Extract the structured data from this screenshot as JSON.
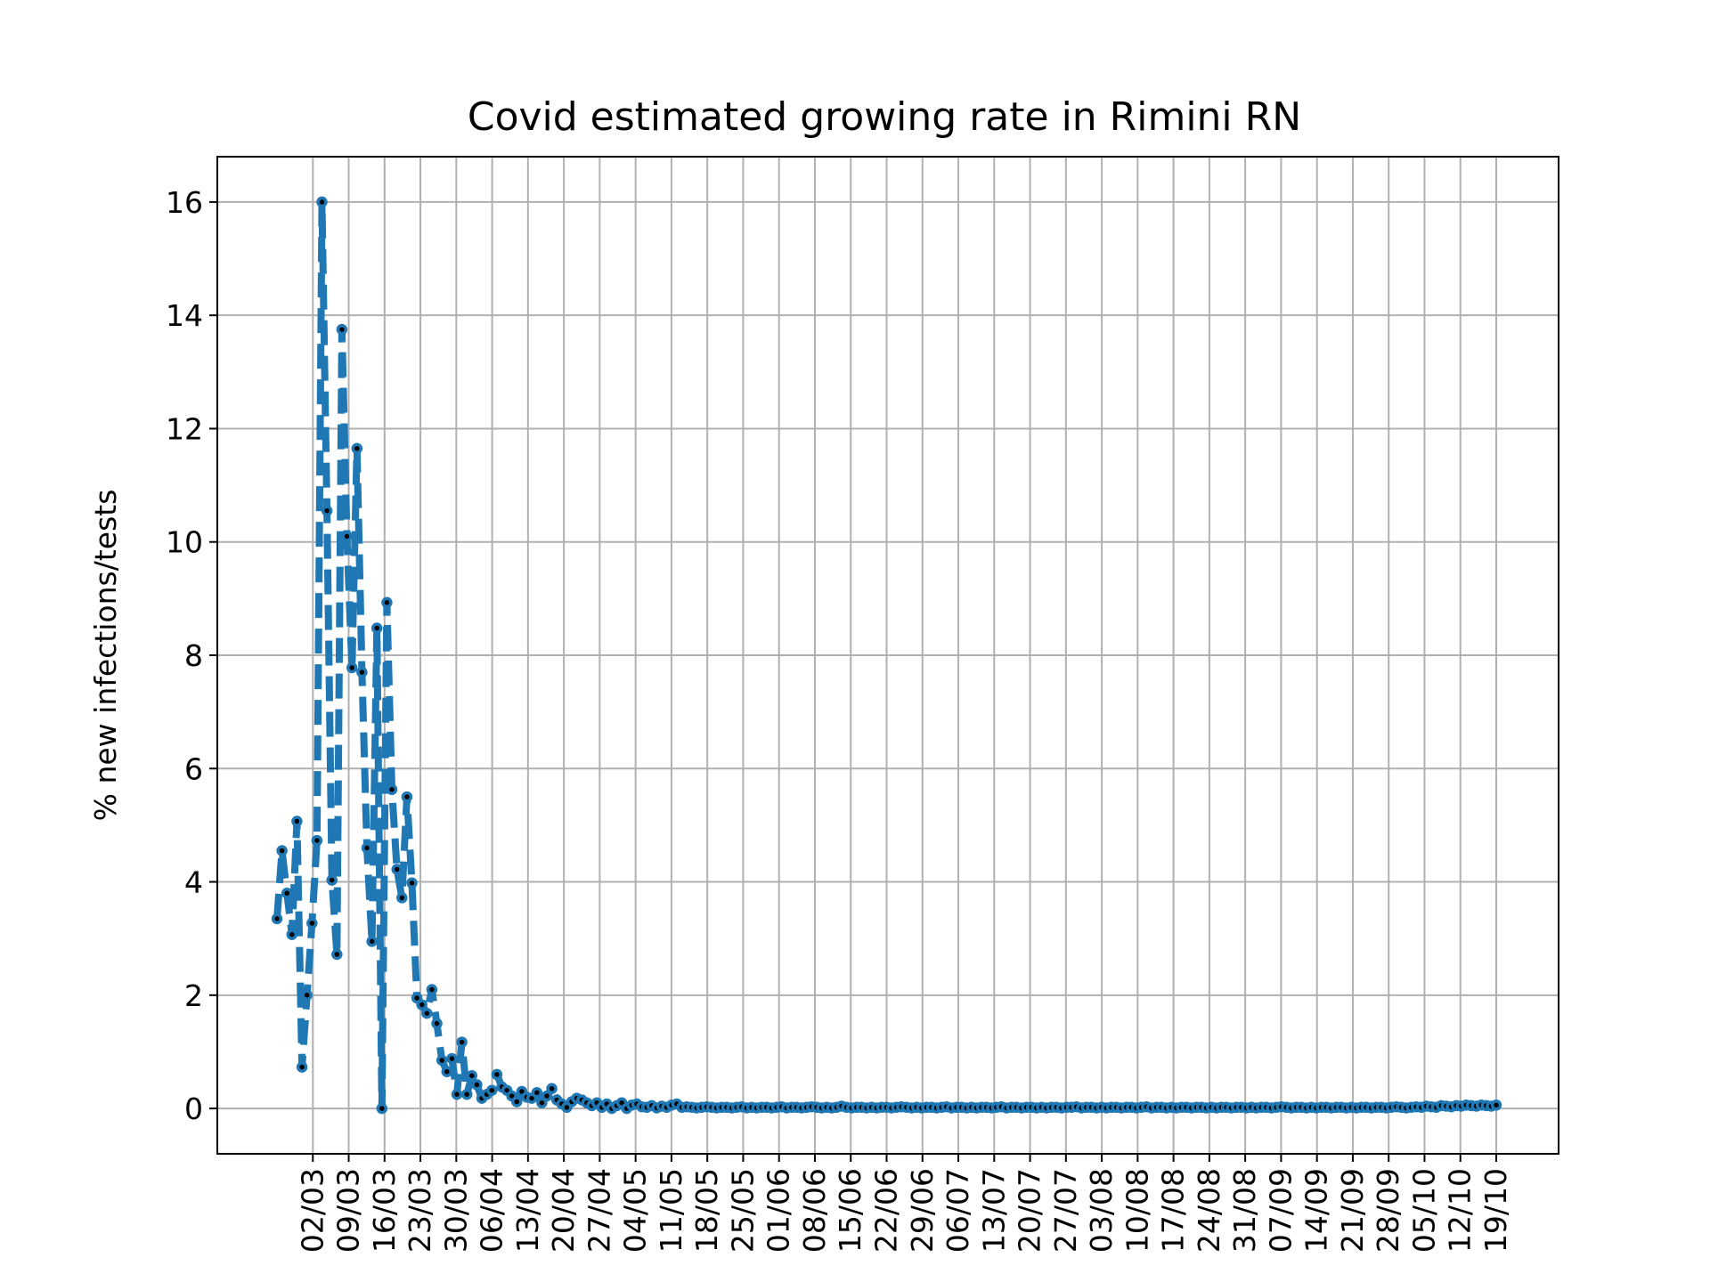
{
  "chart_data": {
    "type": "line",
    "title": "Covid estimated growing rate in Rimini RN",
    "xlabel": "",
    "ylabel": "% new infections/tests",
    "ylim": [
      -0.8,
      16.8
    ],
    "yticks": [
      0,
      2,
      4,
      6,
      8,
      10,
      12,
      14,
      16
    ],
    "x_start_date": "2020-02-24",
    "x_end_date": "2020-10-19",
    "xticks": [
      "02/03",
      "09/03",
      "16/03",
      "23/03",
      "30/03",
      "06/04",
      "13/04",
      "20/04",
      "27/04",
      "04/05",
      "11/05",
      "18/05",
      "25/05",
      "01/06",
      "08/06",
      "15/06",
      "22/06",
      "29/06",
      "06/07",
      "13/07",
      "20/07",
      "27/07",
      "03/08",
      "10/08",
      "17/08",
      "24/08",
      "31/08",
      "07/09",
      "14/09",
      "21/09",
      "28/09",
      "05/10",
      "12/10",
      "19/10"
    ],
    "grid": true,
    "line_color": "#1f77b4",
    "marker_color": "#000000",
    "line_style": "dashed",
    "series": [
      {
        "name": "",
        "values": [
          3.35,
          4.55,
          3.8,
          3.07,
          5.07,
          0.73,
          2.0,
          3.27,
          4.73,
          16.0,
          10.55,
          4.03,
          2.72,
          13.75,
          10.1,
          7.78,
          11.65,
          7.7,
          4.6,
          2.95,
          8.48,
          0.0,
          8.93,
          5.63,
          4.22,
          3.72,
          5.5,
          3.98,
          1.95,
          1.83,
          1.68,
          2.1,
          1.5,
          0.85,
          0.65,
          0.88,
          0.25,
          1.17,
          0.25,
          0.58,
          0.42,
          0.18,
          0.25,
          0.32,
          0.6,
          0.38,
          0.32,
          0.22,
          0.12,
          0.3,
          0.2,
          0.18,
          0.28,
          0.1,
          0.22,
          0.35,
          0.15,
          0.08,
          0.02,
          0.12,
          0.18,
          0.15,
          0.1,
          0.05,
          0.1,
          0.02,
          0.08,
          0.0,
          0.05,
          0.1,
          0.0,
          0.06,
          0.08,
          0.03,
          0.02,
          0.05,
          0.01,
          0.04,
          0.02,
          0.06,
          0.08,
          0.02,
          0.03,
          0.02,
          0.01,
          0.02,
          0.03,
          0.02,
          0.01,
          0.02,
          0.02,
          0.01,
          0.02,
          0.03,
          0.01,
          0.02,
          0.01,
          0.02,
          0.02,
          0.01,
          0.02,
          0.03,
          0.01,
          0.02,
          0.02,
          0.01,
          0.02,
          0.03,
          0.02,
          0.01,
          0.02,
          0.01,
          0.02,
          0.04,
          0.02,
          0.01,
          0.02,
          0.02,
          0.01,
          0.02,
          0.01,
          0.02,
          0.02,
          0.01,
          0.02,
          0.03,
          0.02,
          0.01,
          0.02,
          0.01,
          0.02,
          0.02,
          0.01,
          0.02,
          0.03,
          0.01,
          0.02,
          0.02,
          0.01,
          0.02,
          0.01,
          0.02,
          0.02,
          0.01,
          0.02,
          0.03,
          0.01,
          0.02,
          0.02,
          0.01,
          0.02,
          0.02,
          0.01,
          0.02,
          0.01,
          0.02,
          0.02,
          0.01,
          0.02,
          0.02,
          0.03,
          0.01,
          0.02,
          0.02,
          0.01,
          0.02,
          0.01,
          0.02,
          0.02,
          0.01,
          0.02,
          0.02,
          0.01,
          0.02,
          0.03,
          0.01,
          0.02,
          0.02,
          0.01,
          0.02,
          0.01,
          0.02,
          0.02,
          0.01,
          0.02,
          0.02,
          0.01,
          0.02,
          0.01,
          0.02,
          0.02,
          0.01,
          0.02,
          0.02,
          0.01,
          0.02,
          0.01,
          0.02,
          0.02,
          0.01,
          0.02,
          0.03,
          0.02,
          0.01,
          0.02,
          0.02,
          0.01,
          0.02,
          0.01,
          0.02,
          0.02,
          0.01,
          0.02,
          0.02,
          0.01,
          0.02,
          0.01,
          0.02,
          0.02,
          0.01,
          0.02,
          0.02,
          0.01,
          0.02,
          0.03,
          0.02,
          0.01,
          0.02,
          0.03,
          0.02,
          0.04,
          0.03,
          0.02,
          0.05,
          0.04,
          0.03,
          0.05,
          0.04,
          0.06,
          0.05,
          0.04,
          0.06,
          0.05,
          0.04,
          0.06
        ]
      }
    ]
  }
}
